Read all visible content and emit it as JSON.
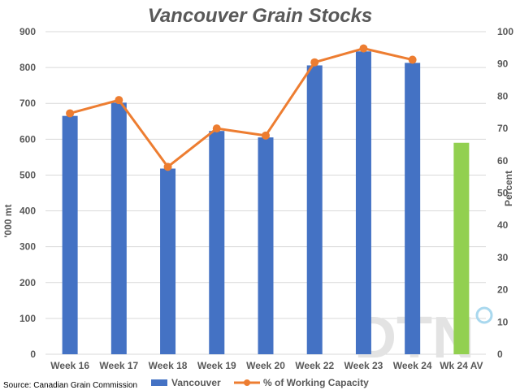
{
  "chart_data": {
    "type": "bar",
    "title": "Vancouver Grain Stocks",
    "ylabel": "'000 mt",
    "y2label": "Percent",
    "ylim": [
      0,
      900
    ],
    "y2lim": [
      0,
      100
    ],
    "yticks": [
      "0",
      "100",
      "200",
      "300",
      "400",
      "500",
      "600",
      "700",
      "800",
      "900"
    ],
    "y2ticks": [
      "0",
      "10",
      "20",
      "30",
      "40",
      "50",
      "60",
      "70",
      "80",
      "90",
      "100"
    ],
    "categories": [
      "Week 16",
      "Week 17",
      "Week 18",
      "Week 19",
      "Week 20",
      "Week 22",
      "Week 23",
      "Week 24",
      "Wk 24 AV"
    ],
    "series": [
      {
        "name": "Vancouver",
        "type": "bar",
        "axis": "left",
        "color": "#4472C4",
        "values": [
          665,
          702,
          518,
          623,
          605,
          806,
          845,
          813,
          null
        ]
      },
      {
        "name": "% of Working Capacity",
        "type": "line",
        "axis": "right",
        "color": "#ED7D31",
        "values": [
          74.7,
          78.8,
          58.1,
          70.0,
          67.8,
          90.5,
          94.8,
          91.3,
          null
        ]
      }
    ],
    "average_bar": {
      "category": "Wk 24 AV",
      "value": 590,
      "color": "#92D050"
    },
    "grid": true,
    "legend": "bottom",
    "source": "Source: Canadian Grain Commission"
  }
}
